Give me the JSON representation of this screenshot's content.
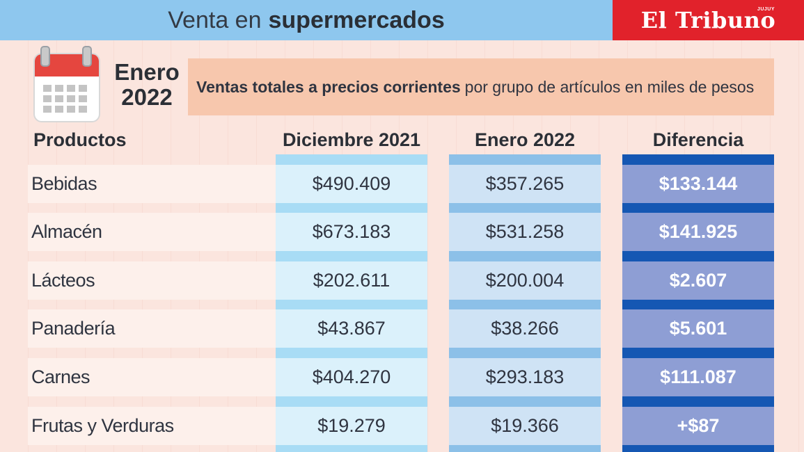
{
  "header": {
    "title_prefix": "Venta en",
    "title_bold": "supermercados",
    "brand": "El Tribuno",
    "brand_sub": "JUJUY"
  },
  "period": {
    "month": "Enero",
    "year": "2022"
  },
  "subtitle": {
    "bold": "Ventas totales a precios corrientes",
    "rest": "por grupo de artículos en miles de pesos"
  },
  "table": {
    "headers": [
      "Productos",
      "Diciembre 2021",
      "Enero 2022",
      "Diferencia"
    ],
    "rows": [
      {
        "producto": "Bebidas",
        "diciembre": "$490.409",
        "enero": "$357.265",
        "diferencia": "$133.144"
      },
      {
        "producto": "Almacén",
        "diciembre": "$673.183",
        "enero": "$531.258",
        "diferencia": "$141.925"
      },
      {
        "producto": "Lácteos",
        "diciembre": "$202.611",
        "enero": "$200.004",
        "diferencia": "$2.607"
      },
      {
        "producto": "Panadería",
        "diciembre": "$43.867",
        "enero": "$38.266",
        "diferencia": "$5.601"
      },
      {
        "producto": "Carnes",
        "diciembre": "$404.270",
        "enero": "$293.183",
        "diferencia": "$111.087"
      },
      {
        "producto": "Frutas y Verduras",
        "diciembre": "$19.279",
        "enero": "$19.366",
        "diferencia": "+$87"
      }
    ]
  },
  "colors": {
    "title_bar": "#8ec7ee",
    "brand_bar": "#e1222b",
    "diferencia_column": "#1557b3"
  }
}
